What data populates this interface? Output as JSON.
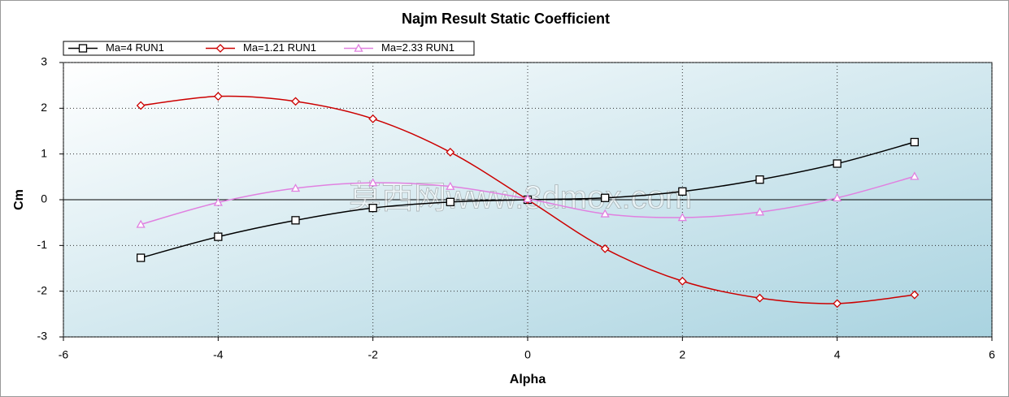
{
  "chart_data": {
    "type": "line",
    "title": "Najm Result Static Coefficient",
    "x_label": "Alpha",
    "y_label": "Cm",
    "x": [
      -5,
      -4,
      -3,
      -2,
      -1,
      0,
      1,
      2,
      3,
      4,
      5
    ],
    "series": [
      {
        "name": "Ma=4 RUN1",
        "color": "#000000",
        "marker": "square",
        "values": [
          -1.27,
          -0.81,
          -0.45,
          -0.18,
          -0.05,
          0,
          0.04,
          0.18,
          0.44,
          0.79,
          1.26
        ]
      },
      {
        "name": "Ma=1.21 RUN1",
        "color": "#cc0000",
        "marker": "diamond",
        "values": [
          2.06,
          2.26,
          2.15,
          1.77,
          1.04,
          0,
          -1.07,
          -1.78,
          -2.15,
          -2.27,
          -2.08
        ]
      },
      {
        "name": "Ma=2.33 RUN1",
        "color": "#e080e0",
        "marker": "triangle",
        "values": [
          -0.54,
          -0.06,
          0.25,
          0.37,
          0.29,
          0.02,
          -0.31,
          -0.39,
          -0.27,
          0.04,
          0.51
        ]
      }
    ],
    "xlim": [
      -6,
      6
    ],
    "xticks": [
      -6,
      -4,
      -2,
      0,
      2,
      4,
      6
    ],
    "ylim": [
      -3,
      3
    ],
    "yticks": [
      -3,
      -2,
      -1,
      0,
      1,
      2,
      3
    ],
    "grid": true,
    "legend": "top-left",
    "watermark": "莫西网www.3dmox.com"
  }
}
